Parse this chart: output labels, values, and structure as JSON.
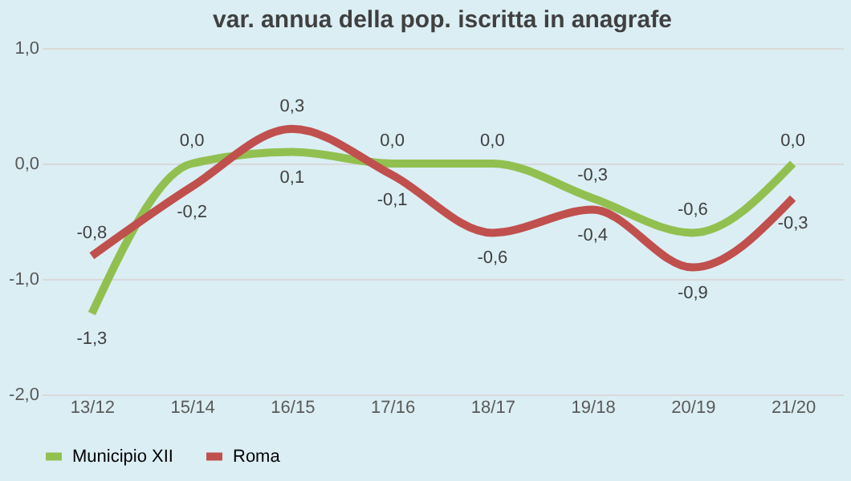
{
  "chart_data": {
    "type": "line",
    "title": "var. annua della pop. iscritta in anagrafe",
    "categories": [
      "13/12",
      "15/14",
      "16/15",
      "17/16",
      "18/17",
      "19/18",
      "20/19",
      "21/20"
    ],
    "series": [
      {
        "name": "Municipio XII",
        "color": "#92c050",
        "values": [
          -1.3,
          0.0,
          0.1,
          0.0,
          0.0,
          -0.3,
          -0.6,
          0.0
        ],
        "value_labels": [
          "-1,3",
          "0,0",
          "0,1",
          "0,0",
          "0,0",
          "-0,3",
          "-0,6",
          "0,0"
        ]
      },
      {
        "name": "Roma",
        "color": "#c0504d",
        "values": [
          -0.8,
          -0.2,
          0.3,
          -0.1,
          -0.6,
          -0.4,
          -0.9,
          -0.3
        ],
        "value_labels": [
          "-0,8",
          "-0,2",
          "0,3",
          "-0,1",
          "-0,6",
          "-0,4",
          "-0,9",
          "-0,3"
        ]
      }
    ],
    "ylim": [
      -2.0,
      1.0
    ],
    "yticks": [
      {
        "value": -2.0,
        "label": "-2,0"
      },
      {
        "value": -1.0,
        "label": "-1,0"
      },
      {
        "value": 0.0,
        "label": "0,0"
      },
      {
        "value": 1.0,
        "label": "1,0"
      }
    ],
    "grid": "y",
    "legend": "bottom",
    "marker": "none",
    "line_style": "solid"
  }
}
